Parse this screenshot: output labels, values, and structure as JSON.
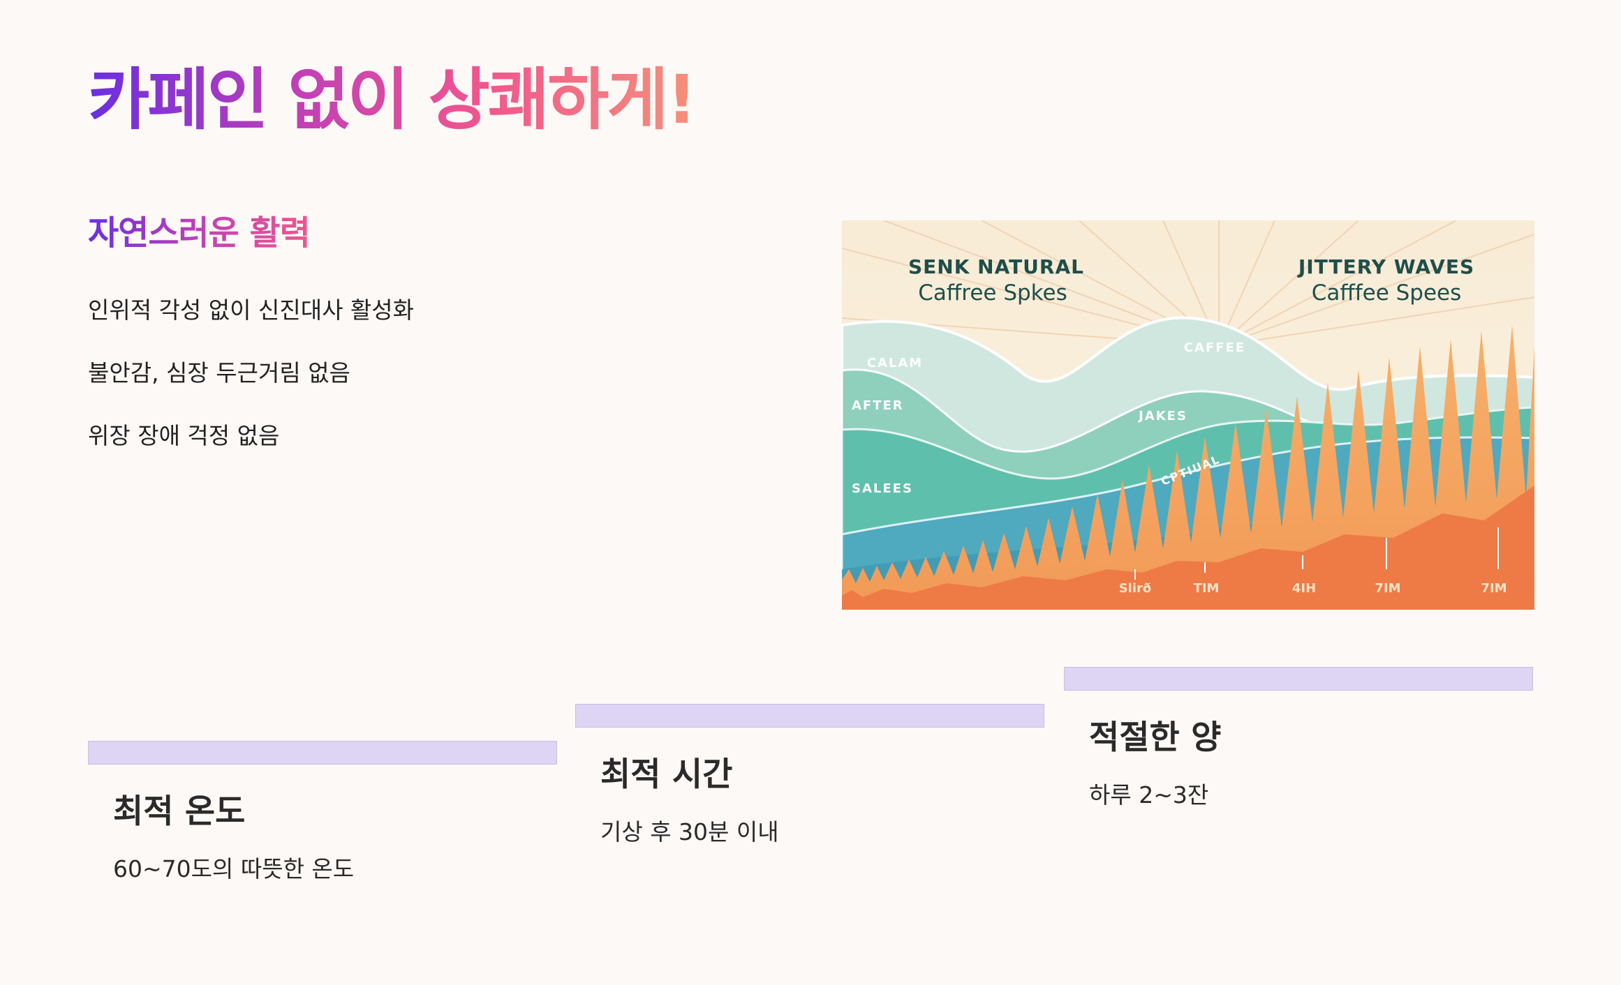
{
  "header": {
    "title": "카페인 없이 상쾌하게!"
  },
  "section": {
    "subtitle": "자연스러운 활력",
    "features": [
      "인위적 각성 없이 신진대사 활성화",
      "불안감, 심장 두근거림 없음",
      "위장 장애 걱정 없음"
    ]
  },
  "illustration": {
    "left_title": "SENK NATURAL",
    "left_subtitle": "Caffree Spkes",
    "right_title": "JITTERY WAVES",
    "right_subtitle": "Cafffee Spees",
    "wave_labels": [
      "CALAM",
      "AFTER",
      "SALEES",
      "CAFFEE",
      "JAKES",
      "CPTIUAL"
    ],
    "time_labels": [
      "Slirð",
      "TIM",
      "4IH",
      "7IM",
      "7IM"
    ]
  },
  "cards": [
    {
      "title": "최적 온도",
      "desc": "60~70도의 따뜻한 온도"
    },
    {
      "title": "최적 시간",
      "desc": "기상 후 30분 이내"
    },
    {
      "title": "적절한 양",
      "desc": "하루 2~3잔"
    }
  ],
  "colors": {
    "background": "#fdf9f6",
    "gradient_start": "#6a2fe0",
    "gradient_end": "#f5907a",
    "card_bar": "#ded5f4"
  }
}
